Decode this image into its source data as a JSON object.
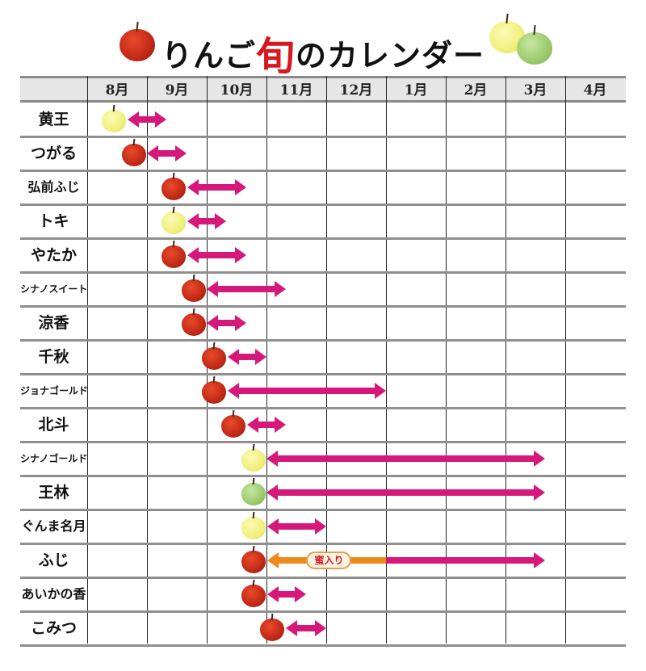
{
  "title": {
    "prefix": "りんご",
    "accent": "旬",
    "suffix": "のカレンダー"
  },
  "colors": {
    "arrow": "#d6187b",
    "honey_arrow": "#ee8a1c",
    "title_accent": "#d7191f",
    "header_bg": "#e6e6e6"
  },
  "months": [
    "8月",
    "9月",
    "10月",
    "11月",
    "12月",
    "1月",
    "2月",
    "3月",
    "4月"
  ],
  "varieties": [
    {
      "name": "黄王",
      "apple": "yellow"
    },
    {
      "name": "つがる",
      "apple": "red"
    },
    {
      "name": "弘前ふじ",
      "apple": "red"
    },
    {
      "name": "トキ",
      "apple": "yellow"
    },
    {
      "name": "やたか",
      "apple": "red"
    },
    {
      "name": "シナノスイート",
      "apple": "red"
    },
    {
      "name": "涼香",
      "apple": "red"
    },
    {
      "name": "千秋",
      "apple": "red"
    },
    {
      "name": "ジョナゴールド",
      "apple": "red"
    },
    {
      "name": "北斗",
      "apple": "red"
    },
    {
      "name": "シナノゴールド",
      "apple": "yellow"
    },
    {
      "name": "王林",
      "apple": "green"
    },
    {
      "name": "ぐんま名月",
      "apple": "yellow"
    },
    {
      "name": "ふじ",
      "apple": "red",
      "note": "蜜入り"
    },
    {
      "name": "あいかの香",
      "apple": "red"
    },
    {
      "name": "こみつ",
      "apple": "red"
    }
  ],
  "chart_data": {
    "type": "gantt",
    "title": "りんご旬のカレンダー",
    "categories": [
      "8月",
      "9月",
      "10月",
      "11月",
      "12月",
      "1月",
      "2月",
      "3月",
      "4月"
    ],
    "unit": "month index (0 = start of 8月, 9 = end of 4月)",
    "series": [
      {
        "name": "黄王",
        "color": "yellow",
        "harvest": 0.45,
        "start": 0.67,
        "end": 1.33
      },
      {
        "name": "つがる",
        "color": "red",
        "harvest": 0.78,
        "start": 1.0,
        "end": 1.66
      },
      {
        "name": "弘前ふじ",
        "color": "red",
        "harvest": 1.45,
        "start": 1.68,
        "end": 2.66
      },
      {
        "name": "トキ",
        "color": "yellow",
        "harvest": 1.45,
        "start": 1.68,
        "end": 2.33
      },
      {
        "name": "やたか",
        "color": "red",
        "harvest": 1.45,
        "start": 1.68,
        "end": 2.66
      },
      {
        "name": "シナノスイート",
        "color": "red",
        "harvest": 1.78,
        "start": 2.0,
        "end": 3.33
      },
      {
        "name": "涼香",
        "color": "red",
        "harvest": 1.78,
        "start": 2.0,
        "end": 2.66
      },
      {
        "name": "千秋",
        "color": "red",
        "harvest": 2.12,
        "start": 2.35,
        "end": 3.0
      },
      {
        "name": "ジョナゴールド",
        "color": "red",
        "harvest": 2.12,
        "start": 2.35,
        "end": 5.0
      },
      {
        "name": "北斗",
        "color": "red",
        "harvest": 2.45,
        "start": 2.68,
        "end": 3.33
      },
      {
        "name": "シナノゴールド",
        "color": "yellow",
        "harvest": 2.78,
        "start": 3.0,
        "end": 7.66
      },
      {
        "name": "王林",
        "color": "green",
        "harvest": 2.78,
        "start": 3.0,
        "end": 7.66
      },
      {
        "name": "ぐんま名月",
        "color": "yellow",
        "harvest": 2.78,
        "start": 3.02,
        "end": 4.0
      },
      {
        "name": "ふじ",
        "color": "red",
        "harvest": 2.78,
        "start": 3.02,
        "end": 7.66,
        "honey_start": 3.02,
        "honey_end": 5.0,
        "annotation": "蜜入り"
      },
      {
        "name": "あいかの香",
        "color": "red",
        "harvest": 2.78,
        "start": 3.01,
        "end": 3.66
      },
      {
        "name": "こみつ",
        "color": "red",
        "harvest": 3.1,
        "start": 3.33,
        "end": 4.0
      }
    ],
    "xlabel": "",
    "ylabel": "",
    "grid": true,
    "legend": "none"
  }
}
